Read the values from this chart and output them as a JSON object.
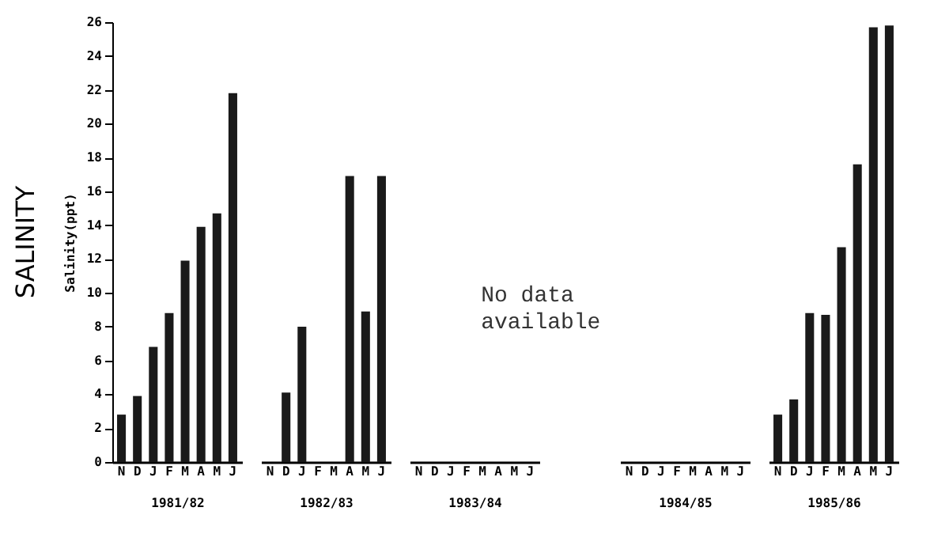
{
  "chart_data": [
    {
      "type": "bar",
      "title": "SALINITY",
      "ylabel": "Salinity(ppt)",
      "xlabel": "1981/82",
      "categories": [
        "N",
        "D",
        "J",
        "F",
        "M",
        "A",
        "M",
        "J"
      ],
      "values": [
        2.8,
        3.9,
        6.8,
        8.8,
        11.9,
        13.9,
        14.7,
        21.8
      ],
      "color": "#1a1a1a",
      "ylim": [
        0,
        26
      ],
      "yticks": [
        0,
        2,
        4,
        6,
        8,
        10,
        12,
        14,
        16,
        18,
        20,
        22,
        24,
        26
      ]
    },
    {
      "type": "bar",
      "xlabel": "1982/83",
      "categories": [
        "N",
        "D",
        "J",
        "F",
        "M",
        "A",
        "M",
        "J"
      ],
      "values": [
        null,
        4.1,
        8.0,
        null,
        null,
        16.9,
        8.9,
        16.9
      ],
      "color": "#1a1a1a",
      "ylim": [
        0,
        26
      ],
      "tick_labels": "x"
    },
    {
      "type": "bar",
      "xlabel": "1983/84",
      "categories": [
        "N",
        "D",
        "J",
        "F",
        "M",
        "A",
        "M",
        "J"
      ],
      "values": [
        null,
        null,
        null,
        null,
        null,
        null,
        null,
        null
      ],
      "color": "#1a1a1a",
      "ylim": [
        0,
        26
      ],
      "tick_labels": "x",
      "annotations": [
        "No data available"
      ]
    },
    {
      "type": "bar",
      "xlabel": "1984/85",
      "categories": [
        "N",
        "D",
        "J",
        "F",
        "M",
        "A",
        "M",
        "J"
      ],
      "values": [
        null,
        null,
        null,
        null,
        null,
        null,
        null,
        null
      ],
      "color": "#1a1a1a",
      "ylim": [
        0,
        26
      ],
      "tick_labels": "x"
    },
    {
      "type": "bar",
      "xlabel": "1985/86",
      "categories": [
        "N",
        "D",
        "J",
        "F",
        "M",
        "A",
        "M",
        "J"
      ],
      "values": [
        2.8,
        3.7,
        8.8,
        8.7,
        12.7,
        17.6,
        25.7,
        25.8
      ],
      "color": "#1a1a1a",
      "ylim": [
        0,
        26
      ],
      "tick_labels": "x"
    }
  ]
}
